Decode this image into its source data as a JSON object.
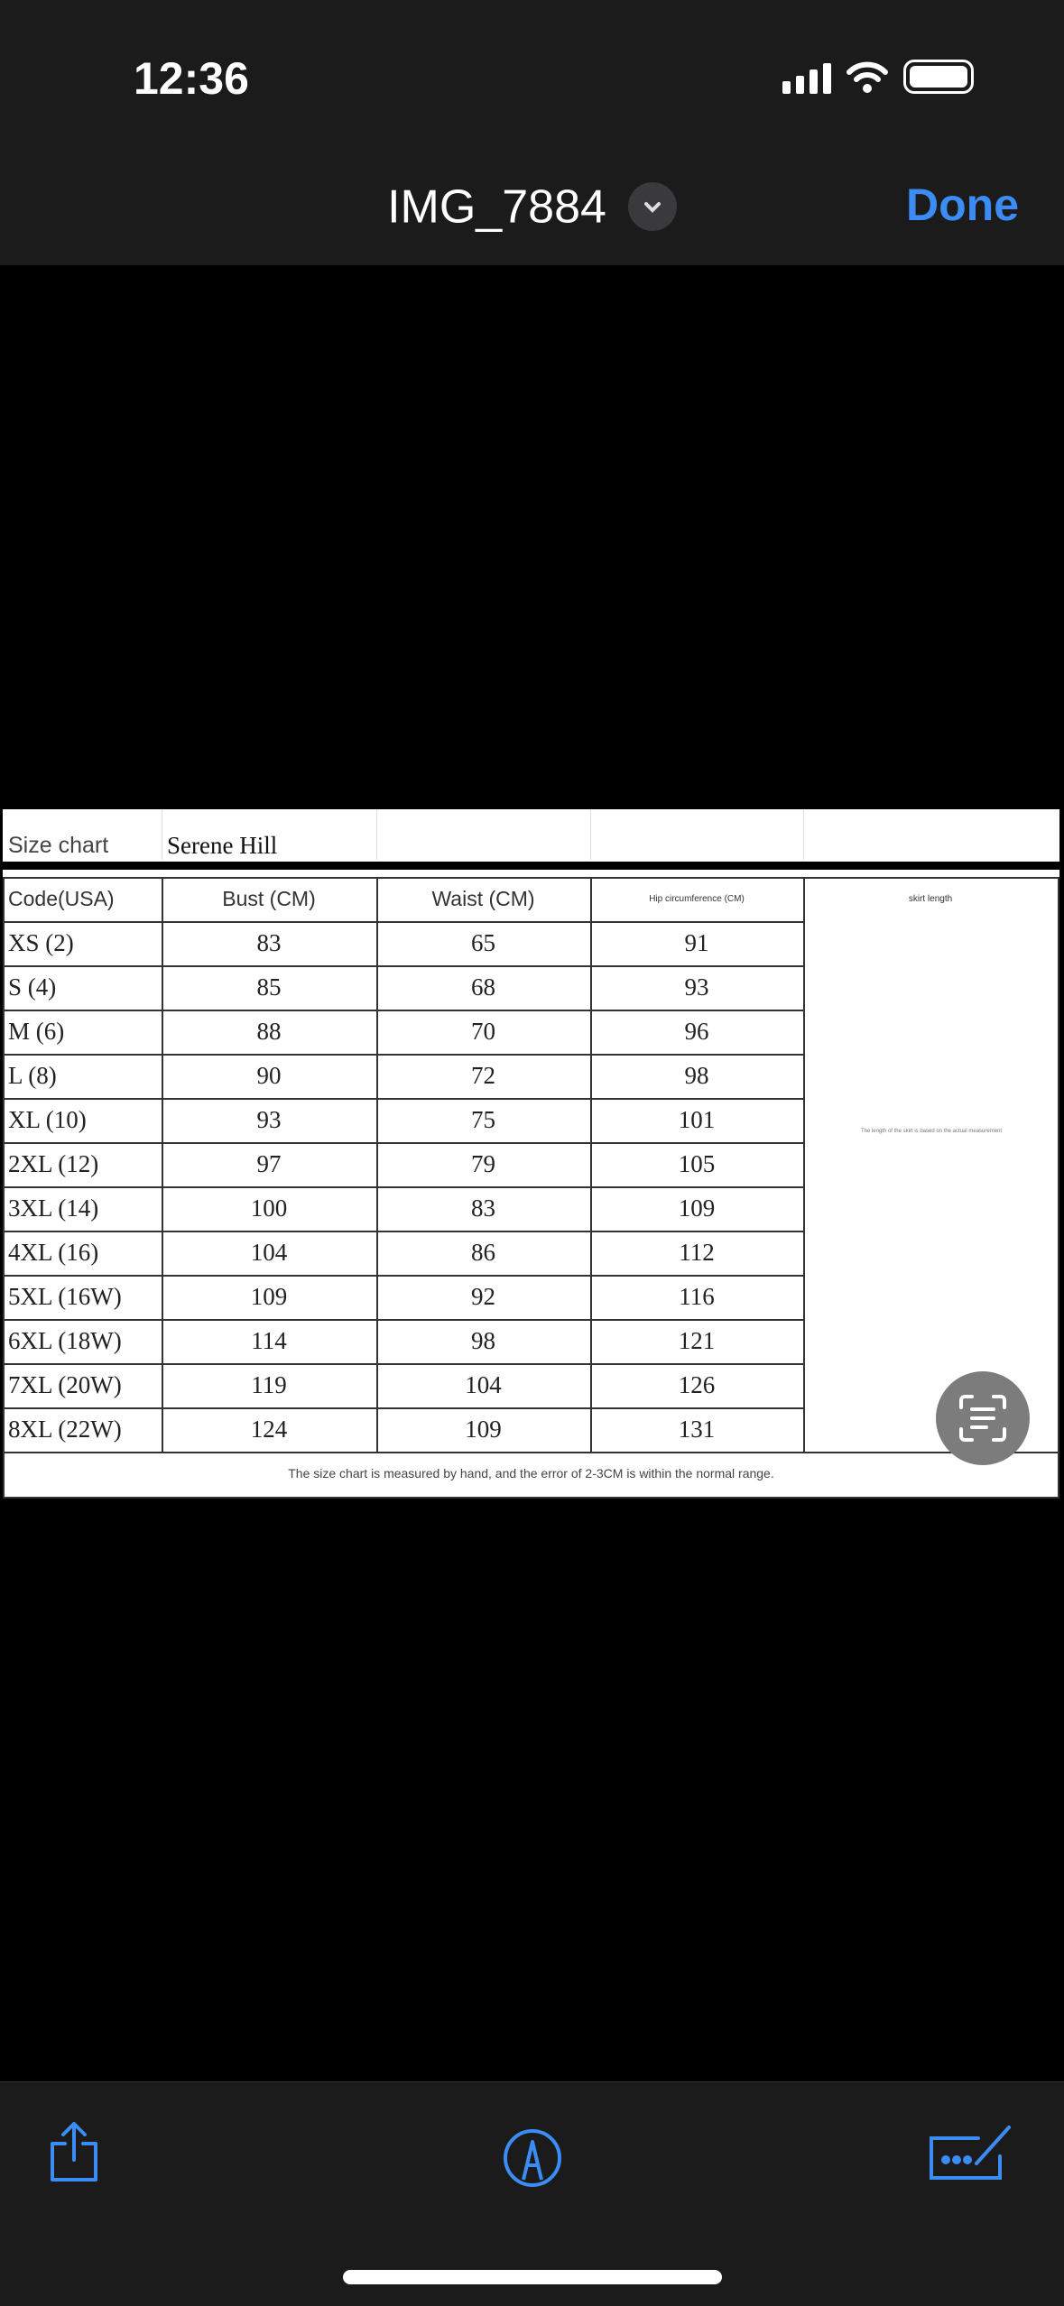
{
  "status_bar": {
    "time": "12:36"
  },
  "header": {
    "title": "IMG_7884",
    "done_label": "Done"
  },
  "size_chart": {
    "label": "Size chart",
    "brand": "Serene Hill",
    "columns": [
      "Code(USA)",
      "Bust (CM)",
      "Waist (CM)",
      "Hip circumference (CM)",
      "skirt length"
    ],
    "rows": [
      [
        "XS (2)",
        "83",
        "65",
        "91"
      ],
      [
        "S (4)",
        "85",
        "68",
        "93"
      ],
      [
        "M (6)",
        "88",
        "70",
        "96"
      ],
      [
        "L (8)",
        "90",
        "72",
        "98"
      ],
      [
        "XL (10)",
        "93",
        "75",
        "101"
      ],
      [
        "2XL (12)",
        "97",
        "79",
        "105"
      ],
      [
        "3XL (14)",
        "100",
        "83",
        "109"
      ],
      [
        "4XL (16)",
        "104",
        "86",
        "112"
      ],
      [
        "5XL (16W)",
        "109",
        "92",
        "116"
      ],
      [
        "6XL (18W)",
        "114",
        "98",
        "121"
      ],
      [
        "7XL (20W)",
        "119",
        "104",
        "126"
      ],
      [
        "8XL (22W)",
        "124",
        "109",
        "131"
      ]
    ],
    "skirt_note": "The length of the skirt is based on the actual measurement",
    "footer_note": "The size chart is measured by hand, and the error of 2-3CM is within the normal range."
  },
  "toolbar": {
    "icons": [
      "share-icon",
      "markup-icon",
      "edit-icon"
    ]
  },
  "colors": {
    "accent": "#3b8cf5",
    "bar_bg": "#1b1b1b"
  }
}
